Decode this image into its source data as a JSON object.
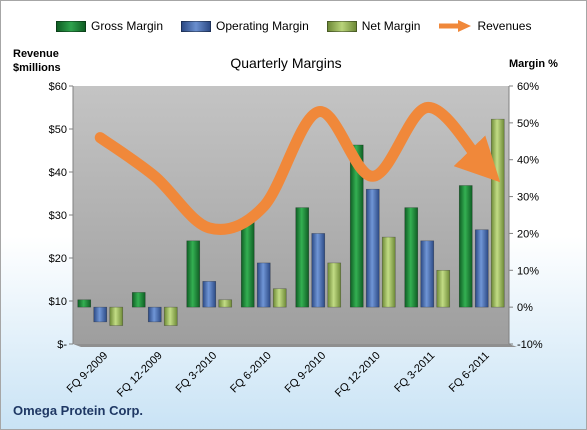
{
  "legend": {
    "gross": "Gross Margin",
    "operating": "Operating Margin",
    "net": "Net Margin",
    "revenues": "Revenues"
  },
  "labels": {
    "left_axis_title_1": "Revenue",
    "left_axis_title_2": "$millions",
    "right_axis_title": "Margin %",
    "company": "Omega Protein Corp."
  },
  "colors": {
    "gross": "#1e8c3c",
    "operating": "#4a6fb5",
    "net": "#9bbb59",
    "revenues": "#f0883a",
    "plot_bg": "#b3b3b3"
  },
  "chart_data": {
    "type": "bar",
    "title": "Quarterly Margins",
    "categories": [
      "FQ 9-2009",
      "FQ 12-2009",
      "FQ 3-2010",
      "FQ 6-2010",
      "FQ 9-2010",
      "FQ 12-2010",
      "FQ 3-2011",
      "FQ 6-2011"
    ],
    "series": [
      {
        "name": "Gross Margin",
        "axis": "right",
        "values": [
          2,
          4,
          18,
          24,
          27,
          44,
          27,
          33
        ]
      },
      {
        "name": "Operating Margin",
        "axis": "right",
        "values": [
          -4,
          -4,
          7,
          12,
          20,
          32,
          18,
          21
        ]
      },
      {
        "name": "Net Margin",
        "axis": "right",
        "values": [
          -5,
          -5,
          2,
          5,
          12,
          19,
          10,
          51
        ]
      },
      {
        "name": "Revenues",
        "type": "line",
        "axis": "left",
        "values": [
          48,
          39,
          27,
          32,
          54,
          39,
          55,
          42
        ]
      }
    ],
    "left_ylabel": "Revenue $millions",
    "left_ylim": [
      0,
      60
    ],
    "left_ticks": [
      "$-",
      "$10",
      "$20",
      "$30",
      "$40",
      "$50",
      "$60"
    ],
    "right_ylabel": "Margin %",
    "right_ylim": [
      -10,
      60
    ],
    "right_ticks": [
      "-10%",
      "0%",
      "10%",
      "20%",
      "30%",
      "40%",
      "50%",
      "60%"
    ],
    "grid": false,
    "legend_position": "top"
  }
}
